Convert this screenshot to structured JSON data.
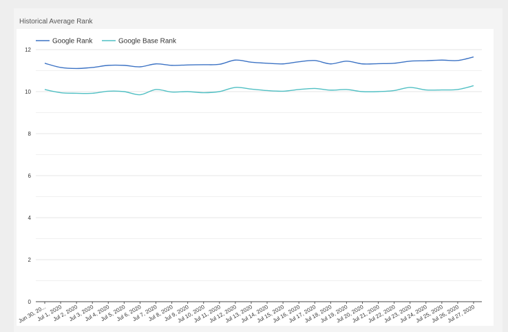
{
  "card": {
    "title": "Historical Average Rank"
  },
  "chart_data": {
    "type": "line",
    "title": "Historical Average Rank",
    "xlabel": "",
    "ylabel": "",
    "ylim": [
      0,
      12
    ],
    "yticks": [
      0,
      2,
      4,
      6,
      8,
      10,
      12
    ],
    "grid": true,
    "legend": "top-left",
    "categories": [
      "Jun 30, 20...",
      "Jul 1, 2020",
      "Jul 2, 2020",
      "Jul 3, 2020",
      "Jul 4, 2020",
      "Jul 5, 2020",
      "Jul 6, 2020",
      "Jul 7, 2020",
      "Jul 8, 2020",
      "Jul 9, 2020",
      "Jul 10, 2020",
      "Jul 11, 2020",
      "Jul 12, 2020",
      "Jul 13, 2020",
      "Jul 14, 2020",
      "Jul 15, 2020",
      "Jul 16, 2020",
      "Jul 17, 2020",
      "Jul 18, 2020",
      "Jul 19, 2020",
      "Jul 20, 2020",
      "Jul 21, 2020",
      "Jul 22, 2020",
      "Jul 23, 2020",
      "Jul 24, 2020",
      "Jul 25, 2020",
      "Jul 26, 2020",
      "Jul 27, 2020"
    ],
    "series": [
      {
        "name": "Google Rank",
        "color": "#3b72c4",
        "values": [
          11.35,
          11.15,
          11.1,
          11.15,
          11.25,
          11.25,
          11.18,
          11.32,
          11.25,
          11.27,
          11.28,
          11.3,
          11.5,
          11.4,
          11.35,
          11.32,
          11.42,
          11.48,
          11.32,
          11.45,
          11.32,
          11.33,
          11.35,
          11.45,
          11.47,
          11.5,
          11.48,
          11.65
        ]
      },
      {
        "name": "Google Base Rank",
        "color": "#4fbfc3",
        "values": [
          10.1,
          9.95,
          9.92,
          9.92,
          10.02,
          10.0,
          9.85,
          10.1,
          9.98,
          10.0,
          9.95,
          10.0,
          10.2,
          10.12,
          10.05,
          10.02,
          10.1,
          10.15,
          10.07,
          10.1,
          10.0,
          10.0,
          10.05,
          10.2,
          10.08,
          10.08,
          10.1,
          10.28
        ]
      }
    ]
  }
}
